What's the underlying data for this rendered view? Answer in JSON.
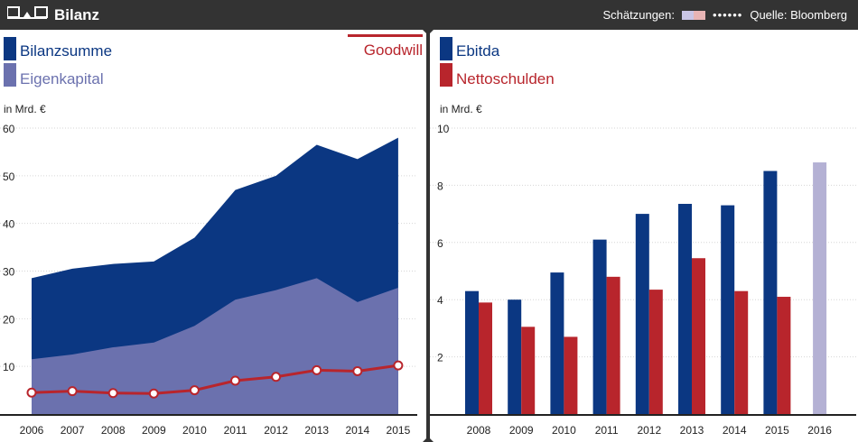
{
  "header": {
    "title": "Bilanz",
    "estimates_label": "Schätzungen:",
    "estimate_colors": [
      "#c9c5e6",
      "#e8b4b4"
    ],
    "dots": "••••••",
    "source": "Quelle: Bloomberg",
    "logo_icon": "scale-icon"
  },
  "colors": {
    "dark_blue": "#0b3782",
    "light_blue": "#6b71ae",
    "red": "#b8252c",
    "estimate_blue": "#b4b1d4",
    "header_bg": "#333333"
  },
  "chart_data": [
    {
      "type": "area",
      "title": "Bilanz",
      "ylabel": "in Mrd. €",
      "ylim": [
        0,
        60
      ],
      "yticks": [
        10,
        20,
        30,
        40,
        50,
        60
      ],
      "categories": [
        "2006",
        "2007",
        "2008",
        "2009",
        "2010",
        "2011",
        "2012",
        "2013",
        "2014",
        "2015"
      ],
      "series": [
        {
          "name": "Bilanzsumme",
          "kind": "area",
          "values": [
            28.5,
            30.5,
            31.5,
            32,
            37,
            47,
            50,
            56.5,
            53.5,
            58
          ]
        },
        {
          "name": "Eigenkapital",
          "kind": "area",
          "values": [
            11.5,
            12.5,
            14,
            15,
            18.5,
            24,
            26,
            28.5,
            23.5,
            26.5
          ]
        },
        {
          "name": "Goodwill",
          "kind": "line",
          "values": [
            4.5,
            4.8,
            4.4,
            4.3,
            5,
            7,
            7.8,
            9.2,
            9,
            10.2
          ]
        }
      ]
    },
    {
      "type": "bar",
      "ylabel": "in Mrd. €",
      "ylim": [
        0,
        10
      ],
      "yticks": [
        2,
        4,
        6,
        8,
        10
      ],
      "categories": [
        "2008",
        "2009",
        "2010",
        "2011",
        "2012",
        "2013",
        "2014",
        "2015",
        "2016"
      ],
      "series": [
        {
          "name": "Ebitda",
          "values": [
            4.3,
            4.0,
            4.95,
            6.1,
            7.0,
            7.35,
            7.3,
            8.5,
            8.8
          ],
          "estimate_index": 8
        },
        {
          "name": "Nettoschulden",
          "values": [
            3.9,
            3.05,
            2.7,
            4.8,
            4.35,
            5.45,
            4.3,
            4.1,
            null
          ]
        }
      ]
    }
  ]
}
